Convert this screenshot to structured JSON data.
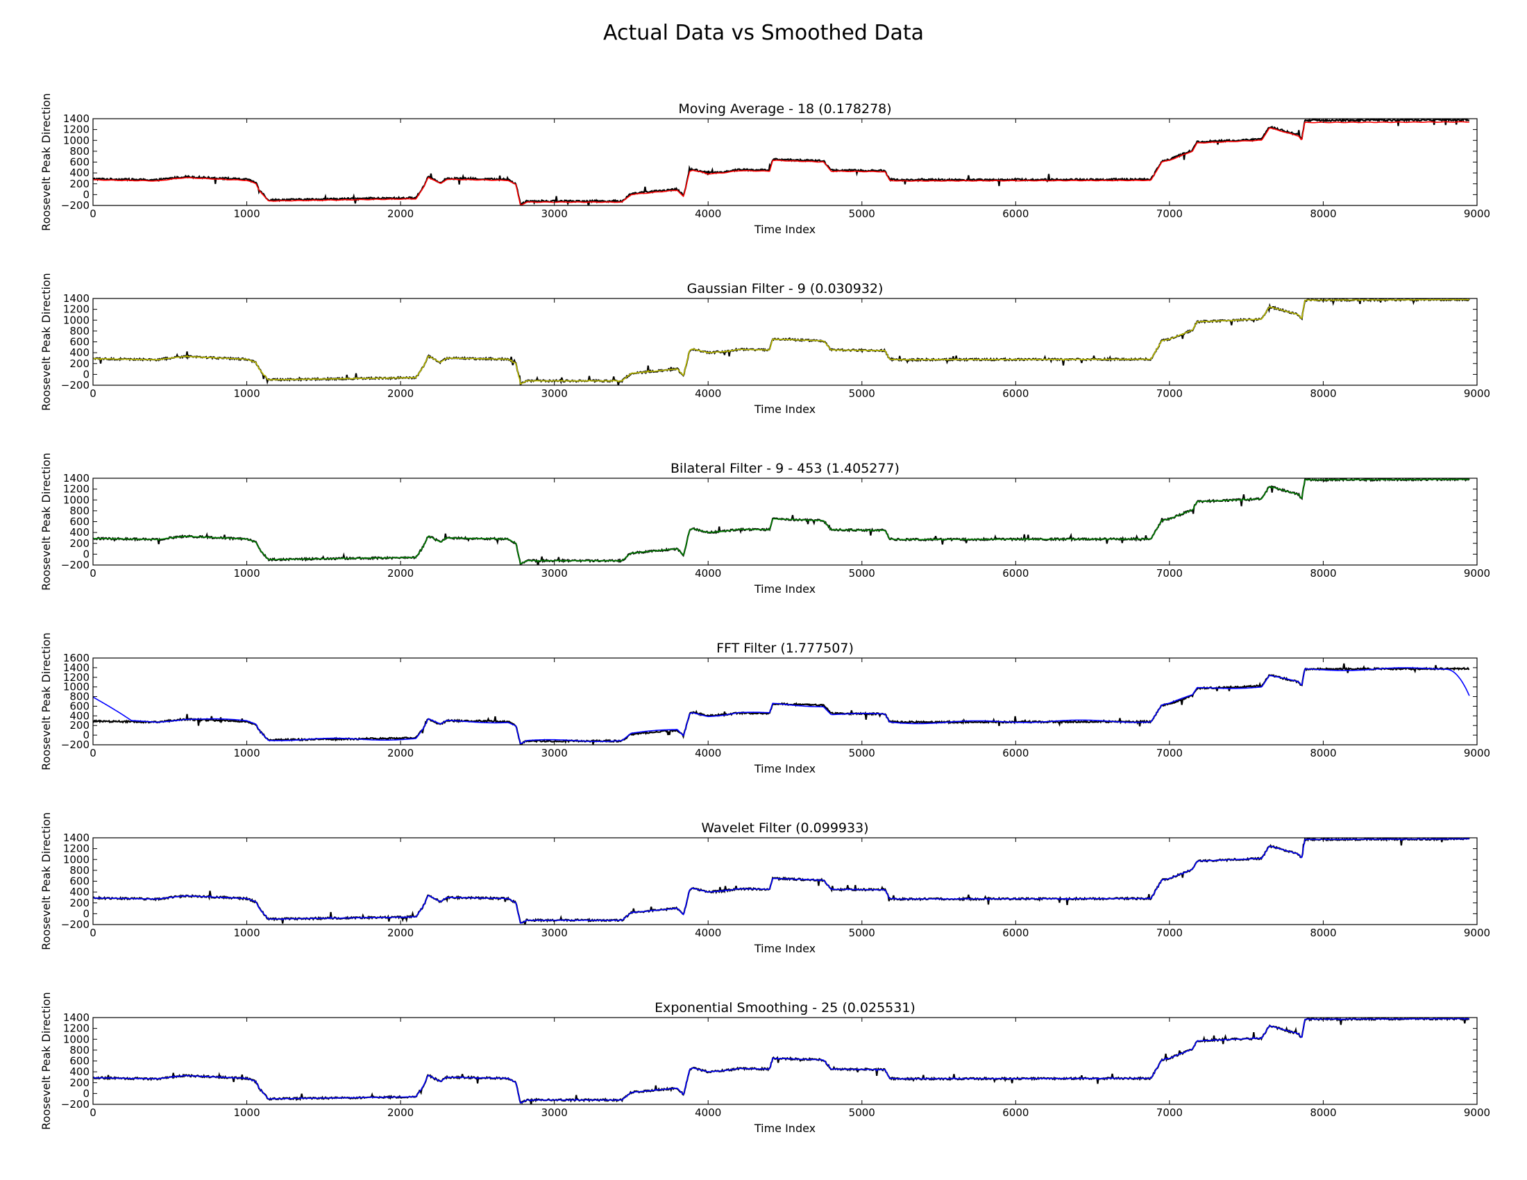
{
  "figure": {
    "title": "Actual Data vs Smoothed Data"
  },
  "chart_data": [
    {
      "type": "line",
      "title": "Moving Average - 18 (0.178278)",
      "xlabel": "Time Index",
      "ylabel": "Roosevelt Peak Direction",
      "xlim": [
        0,
        9000
      ],
      "ylim": [
        -200,
        1400
      ],
      "xticks": [
        "0",
        "1000",
        "2000",
        "3000",
        "4000",
        "5000",
        "6000",
        "7000",
        "8000",
        "9000"
      ],
      "yticks": [
        "−200",
        "0",
        "200",
        "400",
        "600",
        "800",
        "1000",
        "1200",
        "1400"
      ],
      "smoothed_color": "#ff0000",
      "smoothed_style": "offset",
      "series": [
        {
          "x": [
            0,
            420,
            500,
            600,
            1000,
            1060,
            1080,
            1140,
            2100,
            2150,
            2180,
            2260,
            2300,
            2700,
            2750,
            2780,
            2820,
            3440,
            3500,
            3800,
            3840,
            3880,
            3900,
            4000,
            4100,
            4200,
            4400,
            4420,
            4750,
            4800,
            5150,
            5180,
            5250,
            6880,
            6900,
            6950,
            7000,
            7150,
            7180,
            7600,
            7650,
            7840,
            7860,
            7880,
            8950
          ],
          "y": [
            290,
            270,
            300,
            330,
            280,
            220,
            100,
            -100,
            -60,
            150,
            340,
            220,
            300,
            280,
            200,
            -180,
            -120,
            -120,
            20,
            100,
            -20,
            450,
            470,
            400,
            420,
            460,
            450,
            650,
            620,
            450,
            440,
            280,
            270,
            280,
            380,
            620,
            650,
            820,
            970,
            1020,
            1250,
            1100,
            1020,
            1370,
            1380
          ]
        }
      ]
    },
    {
      "type": "line",
      "title": "Gaussian Filter - 9 (0.030932)",
      "xlabel": "Time Index",
      "ylabel": "Roosevelt Peak Direction",
      "xlim": [
        0,
        9000
      ],
      "ylim": [
        -200,
        1400
      ],
      "xticks": [
        "0",
        "1000",
        "2000",
        "3000",
        "4000",
        "5000",
        "6000",
        "7000",
        "8000",
        "9000"
      ],
      "yticks": [
        "−200",
        "0",
        "200",
        "400",
        "600",
        "800",
        "1000",
        "1200",
        "1400"
      ],
      "smoothed_color": "#bfbf00",
      "smoothed_style": "close",
      "series": [
        {
          "x": [
            0,
            420,
            500,
            600,
            1000,
            1060,
            1080,
            1140,
            2100,
            2150,
            2180,
            2260,
            2300,
            2700,
            2750,
            2780,
            2820,
            3440,
            3500,
            3800,
            3840,
            3880,
            3900,
            4000,
            4100,
            4200,
            4400,
            4420,
            4750,
            4800,
            5150,
            5180,
            5250,
            6880,
            6900,
            6950,
            7000,
            7150,
            7180,
            7600,
            7650,
            7840,
            7860,
            7880,
            8950
          ],
          "y": [
            290,
            270,
            300,
            330,
            280,
            220,
            100,
            -100,
            -60,
            150,
            340,
            220,
            300,
            280,
            200,
            -180,
            -120,
            -120,
            20,
            100,
            -20,
            450,
            470,
            400,
            420,
            460,
            450,
            650,
            620,
            450,
            440,
            280,
            270,
            280,
            380,
            620,
            650,
            820,
            970,
            1020,
            1250,
            1100,
            1020,
            1370,
            1380
          ]
        }
      ]
    },
    {
      "type": "line",
      "title": "Bilateral Filter - 9 - 453 (1.405277)",
      "xlabel": "Time Index",
      "ylabel": "Roosevelt Peak Direction",
      "xlim": [
        0,
        9000
      ],
      "ylim": [
        -200,
        1400
      ],
      "xticks": [
        "0",
        "1000",
        "2000",
        "3000",
        "4000",
        "5000",
        "6000",
        "7000",
        "8000",
        "9000"
      ],
      "yticks": [
        "−200",
        "0",
        "200",
        "400",
        "600",
        "800",
        "1000",
        "1200",
        "1400"
      ],
      "smoothed_color": "#008000",
      "smoothed_style": "close",
      "series": [
        {
          "x": [
            0,
            420,
            500,
            600,
            1000,
            1060,
            1080,
            1140,
            2100,
            2150,
            2180,
            2260,
            2300,
            2700,
            2750,
            2780,
            2820,
            3440,
            3500,
            3800,
            3840,
            3880,
            3900,
            4000,
            4100,
            4200,
            4400,
            4420,
            4750,
            4800,
            5150,
            5180,
            5250,
            6880,
            6900,
            6950,
            7000,
            7150,
            7180,
            7600,
            7650,
            7840,
            7860,
            7880,
            8950
          ],
          "y": [
            290,
            270,
            300,
            330,
            280,
            220,
            100,
            -100,
            -60,
            150,
            340,
            220,
            300,
            280,
            200,
            -180,
            -120,
            -120,
            20,
            100,
            -20,
            450,
            470,
            400,
            420,
            460,
            450,
            650,
            620,
            450,
            440,
            280,
            270,
            280,
            380,
            620,
            650,
            820,
            970,
            1020,
            1250,
            1100,
            1020,
            1370,
            1380
          ]
        }
      ]
    },
    {
      "type": "line",
      "title": "FFT Filter (1.777507)",
      "xlabel": "Time Index",
      "ylabel": "Roosevelt Peak Direction",
      "xlim": [
        0,
        9000
      ],
      "ylim": [
        -200,
        1600
      ],
      "xticks": [
        "0",
        "1000",
        "2000",
        "3000",
        "4000",
        "5000",
        "6000",
        "7000",
        "8000",
        "9000"
      ],
      "yticks": [
        "−200",
        "0",
        "200",
        "400",
        "600",
        "800",
        "1000",
        "1200",
        "1400",
        "1600"
      ],
      "smoothed_color": "#0000ff",
      "smoothed_style": "fft",
      "series": [
        {
          "x": [
            0,
            420,
            500,
            600,
            1000,
            1060,
            1080,
            1140,
            2100,
            2150,
            2180,
            2260,
            2300,
            2700,
            2750,
            2780,
            2820,
            3440,
            3500,
            3800,
            3840,
            3880,
            3900,
            4000,
            4100,
            4200,
            4400,
            4420,
            4750,
            4800,
            5150,
            5180,
            5250,
            6880,
            6900,
            6950,
            7000,
            7150,
            7180,
            7600,
            7650,
            7840,
            7860,
            7880,
            8950
          ],
          "y": [
            290,
            270,
            300,
            330,
            280,
            220,
            100,
            -100,
            -60,
            150,
            340,
            220,
            300,
            280,
            200,
            -180,
            -120,
            -120,
            20,
            100,
            -20,
            450,
            470,
            400,
            420,
            460,
            450,
            650,
            620,
            450,
            440,
            280,
            270,
            280,
            380,
            620,
            650,
            820,
            970,
            1020,
            1250,
            1100,
            1020,
            1370,
            1380
          ]
        }
      ]
    },
    {
      "type": "line",
      "title": "Wavelet Filter (0.099933)",
      "xlabel": "Time Index",
      "ylabel": "Roosevelt Peak Direction",
      "xlim": [
        0,
        9000
      ],
      "ylim": [
        -200,
        1400
      ],
      "xticks": [
        "0",
        "1000",
        "2000",
        "3000",
        "4000",
        "5000",
        "6000",
        "7000",
        "8000",
        "9000"
      ],
      "yticks": [
        "−200",
        "0",
        "200",
        "400",
        "600",
        "800",
        "1000",
        "1200",
        "1400"
      ],
      "smoothed_color": "#0000ff",
      "smoothed_style": "close",
      "series": [
        {
          "x": [
            0,
            420,
            500,
            600,
            1000,
            1060,
            1080,
            1140,
            2100,
            2150,
            2180,
            2260,
            2300,
            2700,
            2750,
            2780,
            2820,
            3440,
            3500,
            3800,
            3840,
            3880,
            3900,
            4000,
            4100,
            4200,
            4400,
            4420,
            4750,
            4800,
            5150,
            5180,
            5250,
            6880,
            6900,
            6950,
            7000,
            7150,
            7180,
            7600,
            7650,
            7840,
            7860,
            7880,
            8950
          ],
          "y": [
            290,
            270,
            300,
            330,
            280,
            220,
            100,
            -100,
            -60,
            150,
            340,
            220,
            300,
            280,
            200,
            -180,
            -120,
            -120,
            20,
            100,
            -20,
            450,
            470,
            400,
            420,
            460,
            450,
            650,
            620,
            450,
            440,
            280,
            270,
            280,
            380,
            620,
            650,
            820,
            970,
            1020,
            1250,
            1100,
            1020,
            1370,
            1380
          ]
        }
      ]
    },
    {
      "type": "line",
      "title": "Exponential Smoothing - 25 (0.025531)",
      "xlabel": "Time Index",
      "ylabel": "Roosevelt Peak Direction",
      "xlim": [
        0,
        9000
      ],
      "ylim": [
        -200,
        1400
      ],
      "xticks": [
        "0",
        "1000",
        "2000",
        "3000",
        "4000",
        "5000",
        "6000",
        "7000",
        "8000",
        "9000"
      ],
      "yticks": [
        "−200",
        "0",
        "200",
        "400",
        "600",
        "800",
        "1000",
        "1200",
        "1400"
      ],
      "smoothed_color": "#0000ff",
      "smoothed_style": "close",
      "series": [
        {
          "x": [
            0,
            420,
            500,
            600,
            1000,
            1060,
            1080,
            1140,
            2100,
            2150,
            2180,
            2260,
            2300,
            2700,
            2750,
            2780,
            2820,
            3440,
            3500,
            3800,
            3840,
            3880,
            3900,
            4000,
            4100,
            4200,
            4400,
            4420,
            4750,
            4800,
            5150,
            5180,
            5250,
            6880,
            6900,
            6950,
            7000,
            7150,
            7180,
            7600,
            7650,
            7840,
            7860,
            7880,
            8950
          ],
          "y": [
            290,
            270,
            300,
            330,
            280,
            220,
            100,
            -100,
            -60,
            150,
            340,
            220,
            300,
            280,
            200,
            -180,
            -120,
            -120,
            20,
            100,
            -20,
            450,
            470,
            400,
            420,
            460,
            450,
            650,
            620,
            450,
            440,
            280,
            270,
            280,
            380,
            620,
            650,
            820,
            970,
            1020,
            1250,
            1100,
            1020,
            1370,
            1380
          ]
        }
      ]
    }
  ]
}
